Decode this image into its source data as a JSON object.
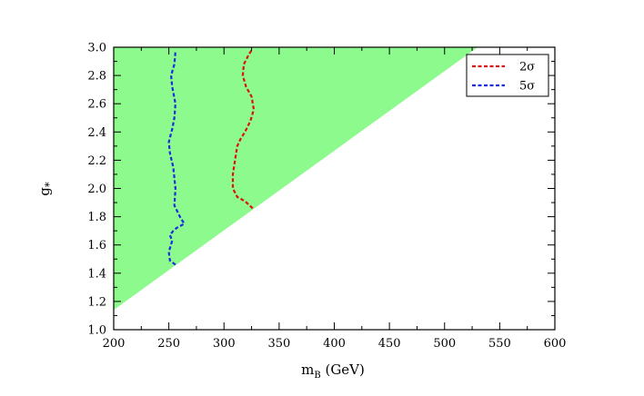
{
  "chart_data": {
    "type": "line",
    "xlabel_main": "m",
    "xlabel_sub": "B",
    "xlabel_unit": " (GeV)",
    "ylabel_main": "g",
    "ylabel_sub": "*",
    "xlim": [
      200,
      600
    ],
    "ylim": [
      1.0,
      3.0
    ],
    "xticks": [
      200,
      250,
      300,
      350,
      400,
      450,
      500,
      550,
      600
    ],
    "yticks": [
      1.0,
      1.2,
      1.4,
      1.6,
      1.8,
      2.0,
      2.2,
      2.4,
      2.6,
      2.8,
      3.0
    ],
    "ytick_labels": [
      "1.0",
      "1.2",
      "1.4",
      "1.6",
      "1.8",
      "2.0",
      "2.2",
      "2.4",
      "2.6",
      "2.8",
      "3.0"
    ],
    "xtick_labels": [
      "200",
      "250",
      "300",
      "350",
      "400",
      "450",
      "500",
      "550",
      "600"
    ],
    "grid": false,
    "legend_position": "top-right",
    "region": {
      "color": "#8cfa8c",
      "polygon": [
        [
          200,
          1.14
        ],
        [
          200,
          3.0
        ],
        [
          530,
          3.0
        ]
      ]
    },
    "series": [
      {
        "name": "2σ",
        "name_main": "2",
        "name_sigma": "σ",
        "color": "#dd1111",
        "style": "dashed",
        "x": [
          326,
          319,
          312,
          308,
          308,
          310,
          312,
          315,
          319,
          324,
          327,
          325,
          320,
          317,
          318,
          322,
          325
        ],
        "y": [
          1.86,
          1.91,
          1.94,
          2.0,
          2.1,
          2.2,
          2.3,
          2.35,
          2.4,
          2.48,
          2.56,
          2.65,
          2.72,
          2.8,
          2.88,
          2.94,
          2.98
        ]
      },
      {
        "name": "5σ",
        "name_main": "5",
        "name_sigma": "σ",
        "color": "#1a2ce0",
        "style": "dashed",
        "x": [
          256,
          251,
          250,
          253,
          251,
          254,
          257,
          264,
          260,
          255,
          256,
          254,
          251,
          250,
          253,
          255,
          256,
          253,
          252,
          255,
          256
        ],
        "y": [
          1.46,
          1.49,
          1.55,
          1.63,
          1.67,
          1.7,
          1.72,
          1.75,
          1.8,
          1.88,
          2.0,
          2.15,
          2.25,
          2.33,
          2.42,
          2.5,
          2.6,
          2.72,
          2.8,
          2.88,
          2.97
        ]
      }
    ]
  }
}
